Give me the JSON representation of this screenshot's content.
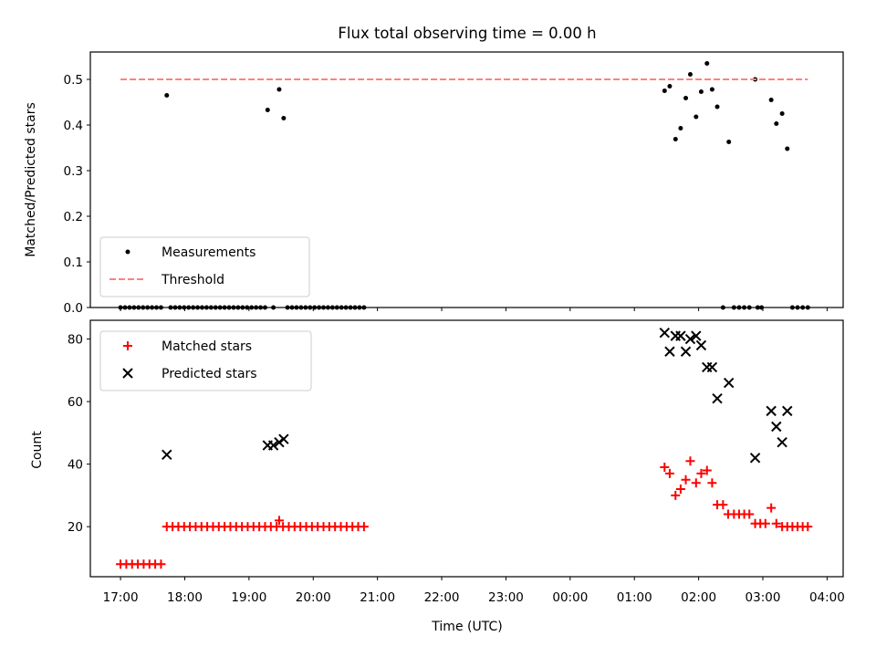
{
  "chart_data": {
    "title": "Flux total observing time = 0.00 h",
    "x_axis": {
      "label": "Time (UTC)",
      "tick_labels": [
        "17:00",
        "18:00",
        "19:00",
        "20:00",
        "21:00",
        "22:00",
        "23:00",
        "00:00",
        "01:00",
        "02:00",
        "03:00",
        "04:00"
      ],
      "tick_values": [
        17,
        18,
        19,
        20,
        21,
        22,
        23,
        24,
        25,
        26,
        27,
        28
      ],
      "unit": "hours (UTC, values past 24 are after midnight)",
      "range": [
        16.53,
        28.25
      ]
    },
    "panels": [
      {
        "type": "scatter",
        "ylabel": "Matched/Predicted stars",
        "ylim": [
          0,
          0.56
        ],
        "yticks": [
          0,
          0.1,
          0.2,
          0.3,
          0.4,
          0.5
        ],
        "ytick_labels": [
          "0.0",
          "0.1",
          "0.2",
          "0.3",
          "0.4",
          "0.5"
        ],
        "legend_position": "lower-left",
        "series": [
          {
            "name": "Measurements",
            "marker": "dot",
            "color": "#000000",
            "points": [
              [
                17.0,
                0
              ],
              [
                17.07,
                0
              ],
              [
                17.14,
                0
              ],
              [
                17.21,
                0
              ],
              [
                17.28,
                0
              ],
              [
                17.35,
                0
              ],
              [
                17.42,
                0
              ],
              [
                17.49,
                0
              ],
              [
                17.56,
                0
              ],
              [
                17.63,
                0
              ],
              [
                17.72,
                0.465
              ],
              [
                17.78,
                0
              ],
              [
                17.85,
                0
              ],
              [
                17.92,
                0
              ],
              [
                17.99,
                0
              ],
              [
                18.06,
                0
              ],
              [
                18.13,
                0
              ],
              [
                18.2,
                0
              ],
              [
                18.27,
                0
              ],
              [
                18.34,
                0
              ],
              [
                18.41,
                0
              ],
              [
                18.48,
                0
              ],
              [
                18.55,
                0
              ],
              [
                18.62,
                0
              ],
              [
                18.69,
                0
              ],
              [
                18.76,
                0
              ],
              [
                18.83,
                0
              ],
              [
                18.9,
                0
              ],
              [
                18.97,
                0
              ],
              [
                19.04,
                0
              ],
              [
                19.11,
                0
              ],
              [
                19.18,
                0
              ],
              [
                19.25,
                0
              ],
              [
                19.29,
                0.433
              ],
              [
                19.38,
                0
              ],
              [
                19.47,
                0.478
              ],
              [
                19.54,
                0.415
              ],
              [
                19.6,
                0
              ],
              [
                19.67,
                0
              ],
              [
                19.74,
                0
              ],
              [
                19.81,
                0
              ],
              [
                19.88,
                0
              ],
              [
                19.95,
                0
              ],
              [
                20.02,
                0
              ],
              [
                20.09,
                0
              ],
              [
                20.16,
                0
              ],
              [
                20.23,
                0
              ],
              [
                20.3,
                0
              ],
              [
                20.37,
                0
              ],
              [
                20.44,
                0
              ],
              [
                20.51,
                0
              ],
              [
                20.58,
                0
              ],
              [
                20.65,
                0
              ],
              [
                20.72,
                0
              ],
              [
                20.79,
                0
              ],
              [
                25.47,
                0.475
              ],
              [
                25.55,
                0.485
              ],
              [
                25.64,
                0.369
              ],
              [
                25.72,
                0.393
              ],
              [
                25.8,
                0.459
              ],
              [
                25.87,
                0.511
              ],
              [
                25.96,
                0.418
              ],
              [
                26.04,
                0.473
              ],
              [
                26.13,
                0.535
              ],
              [
                26.21,
                0.478
              ],
              [
                26.29,
                0.44
              ],
              [
                26.38,
                0
              ],
              [
                26.47,
                0.363
              ],
              [
                26.55,
                0
              ],
              [
                26.63,
                0
              ],
              [
                26.71,
                0
              ],
              [
                26.79,
                0
              ],
              [
                26.88,
                0.5
              ],
              [
                26.92,
                0
              ],
              [
                26.98,
                0
              ],
              [
                27.13,
                0.455
              ],
              [
                27.21,
                0.403
              ],
              [
                27.3,
                0.425
              ],
              [
                27.38,
                0.348
              ],
              [
                27.46,
                0
              ],
              [
                27.54,
                0
              ],
              [
                27.62,
                0
              ],
              [
                27.7,
                0
              ]
            ]
          },
          {
            "name": "Threshold",
            "style": "dashed-line",
            "color": "#ff8080",
            "x": [
              17.0,
              27.7
            ],
            "y": [
              0.5,
              0.5
            ]
          }
        ]
      },
      {
        "type": "scatter",
        "ylabel": "Count",
        "ylim": [
          4,
          86
        ],
        "yticks": [
          20,
          40,
          60,
          80
        ],
        "ytick_labels": [
          "20",
          "40",
          "60",
          "80"
        ],
        "legend_position": "upper-left",
        "series": [
          {
            "name": "Matched stars",
            "marker": "plus",
            "color": "#ff0000",
            "points": [
              [
                17.0,
                8
              ],
              [
                17.09,
                8
              ],
              [
                17.18,
                8
              ],
              [
                17.27,
                8
              ],
              [
                17.36,
                8
              ],
              [
                17.45,
                8
              ],
              [
                17.54,
                8
              ],
              [
                17.63,
                8
              ],
              [
                17.72,
                20
              ],
              [
                17.81,
                20
              ],
              [
                17.9,
                20
              ],
              [
                17.99,
                20
              ],
              [
                18.08,
                20
              ],
              [
                18.17,
                20
              ],
              [
                18.26,
                20
              ],
              [
                18.35,
                20
              ],
              [
                18.44,
                20
              ],
              [
                18.53,
                20
              ],
              [
                18.62,
                20
              ],
              [
                18.71,
                20
              ],
              [
                18.8,
                20
              ],
              [
                18.89,
                20
              ],
              [
                18.98,
                20
              ],
              [
                19.07,
                20
              ],
              [
                19.16,
                20
              ],
              [
                19.25,
                20
              ],
              [
                19.34,
                20
              ],
              [
                19.43,
                20
              ],
              [
                19.47,
                22
              ],
              [
                19.53,
                20
              ],
              [
                19.62,
                20
              ],
              [
                19.71,
                20
              ],
              [
                19.8,
                20
              ],
              [
                19.89,
                20
              ],
              [
                19.98,
                20
              ],
              [
                20.07,
                20
              ],
              [
                20.16,
                20
              ],
              [
                20.25,
                20
              ],
              [
                20.34,
                20
              ],
              [
                20.43,
                20
              ],
              [
                20.52,
                20
              ],
              [
                20.61,
                20
              ],
              [
                20.7,
                20
              ],
              [
                20.79,
                20
              ],
              [
                25.47,
                39
              ],
              [
                25.55,
                37
              ],
              [
                25.64,
                30
              ],
              [
                25.72,
                32
              ],
              [
                25.8,
                35
              ],
              [
                25.87,
                41
              ],
              [
                25.96,
                34
              ],
              [
                26.04,
                37
              ],
              [
                26.13,
                38
              ],
              [
                26.21,
                34
              ],
              [
                26.29,
                27
              ],
              [
                26.38,
                27
              ],
              [
                26.46,
                24
              ],
              [
                26.55,
                24
              ],
              [
                26.63,
                24
              ],
              [
                26.71,
                24
              ],
              [
                26.79,
                24
              ],
              [
                26.88,
                21
              ],
              [
                26.96,
                21
              ],
              [
                27.04,
                21
              ],
              [
                27.13,
                26
              ],
              [
                27.21,
                21
              ],
              [
                27.3,
                20
              ],
              [
                27.38,
                20
              ],
              [
                27.46,
                20
              ],
              [
                27.54,
                20
              ],
              [
                27.62,
                20
              ],
              [
                27.7,
                20
              ]
            ]
          },
          {
            "name": "Predicted stars",
            "marker": "x",
            "color": "#000000",
            "points": [
              [
                17.72,
                43
              ],
              [
                19.29,
                46
              ],
              [
                19.38,
                46
              ],
              [
                19.47,
                47
              ],
              [
                19.54,
                48
              ],
              [
                25.47,
                82
              ],
              [
                25.55,
                76
              ],
              [
                25.64,
                81
              ],
              [
                25.72,
                81
              ],
              [
                25.8,
                76
              ],
              [
                25.87,
                80
              ],
              [
                25.96,
                81
              ],
              [
                26.04,
                78
              ],
              [
                26.13,
                71
              ],
              [
                26.21,
                71
              ],
              [
                26.29,
                61
              ],
              [
                26.47,
                66
              ],
              [
                26.88,
                42
              ],
              [
                27.13,
                57
              ],
              [
                27.21,
                52
              ],
              [
                27.3,
                47
              ],
              [
                27.38,
                57
              ]
            ]
          }
        ]
      }
    ]
  }
}
